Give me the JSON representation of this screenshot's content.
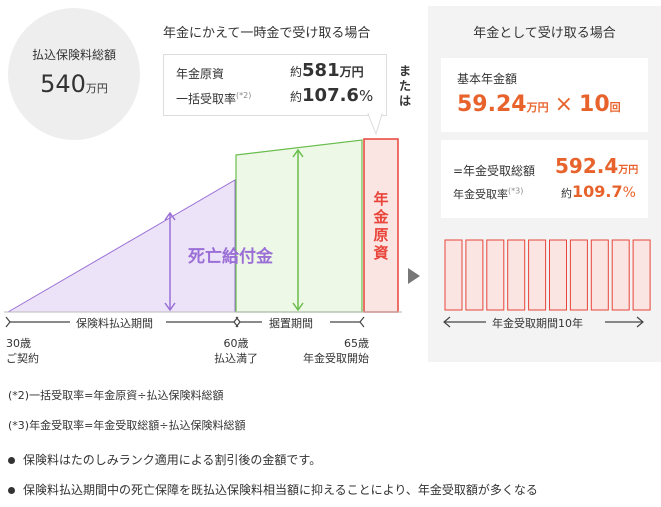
{
  "premium": {
    "label": "払込保険料総額",
    "amount": "540",
    "unit": "万円"
  },
  "lump_sum": {
    "heading": "年金にかえて一時金で受け取る場合",
    "principal_label": "年金原資",
    "principal_prefix": "約",
    "principal_value": "581",
    "principal_unit": "万円",
    "rate_label": "一括受取率",
    "rate_note": "(*2)",
    "rate_prefix": "約",
    "rate_value": "107.6",
    "rate_unit": "%"
  },
  "or_label": "または",
  "annuity": {
    "heading": "年金として受け取る場合",
    "base_label": "基本年金額",
    "base_value": "59.24",
    "base_unit": "万円",
    "times_sign": "×",
    "count_value": "10",
    "count_unit": "回",
    "total_label": "=年金受取総額",
    "total_value": "592.4",
    "total_unit": "万円",
    "rate_label": "年金受取率",
    "rate_note": "(*3)",
    "rate_prefix": "約",
    "rate_value": "109.7",
    "rate_unit": "%",
    "period_label": "年金受取期間10年",
    "bar_count": 10
  },
  "diagram": {
    "death_benefit": "死亡給付金",
    "pension_fund": [
      "年",
      "金",
      "原",
      "資"
    ],
    "payment_period": "保険料払込期間",
    "deferral_period": "据置期間",
    "age30": "30歳",
    "age30_sub": "ご契約",
    "age60": "60歳",
    "age60_sub": "払込満了",
    "age65": "65歳",
    "age65_sub": "年金受取開始"
  },
  "colors": {
    "purple": "#9a6fd6",
    "purple_fill": "#ece3f8",
    "green": "#68bd4c",
    "green_fill": "#eef8e6",
    "red": "#e8443a",
    "red_fill": "#fbe5e2",
    "orange": "#e8632c"
  },
  "notes": {
    "n2": "(*2)一括受取率=年金原資÷払込保険料総額",
    "n3": "(*3)年金受取率=年金受取総額÷払込保険料総額"
  },
  "bullets": [
    "保険料はたのしみランク適用による割引後の金額です。",
    "保険料払込期間中の死亡保障を既払込保険料相当額に抑えることにより、年金受取額が多くなる"
  ]
}
